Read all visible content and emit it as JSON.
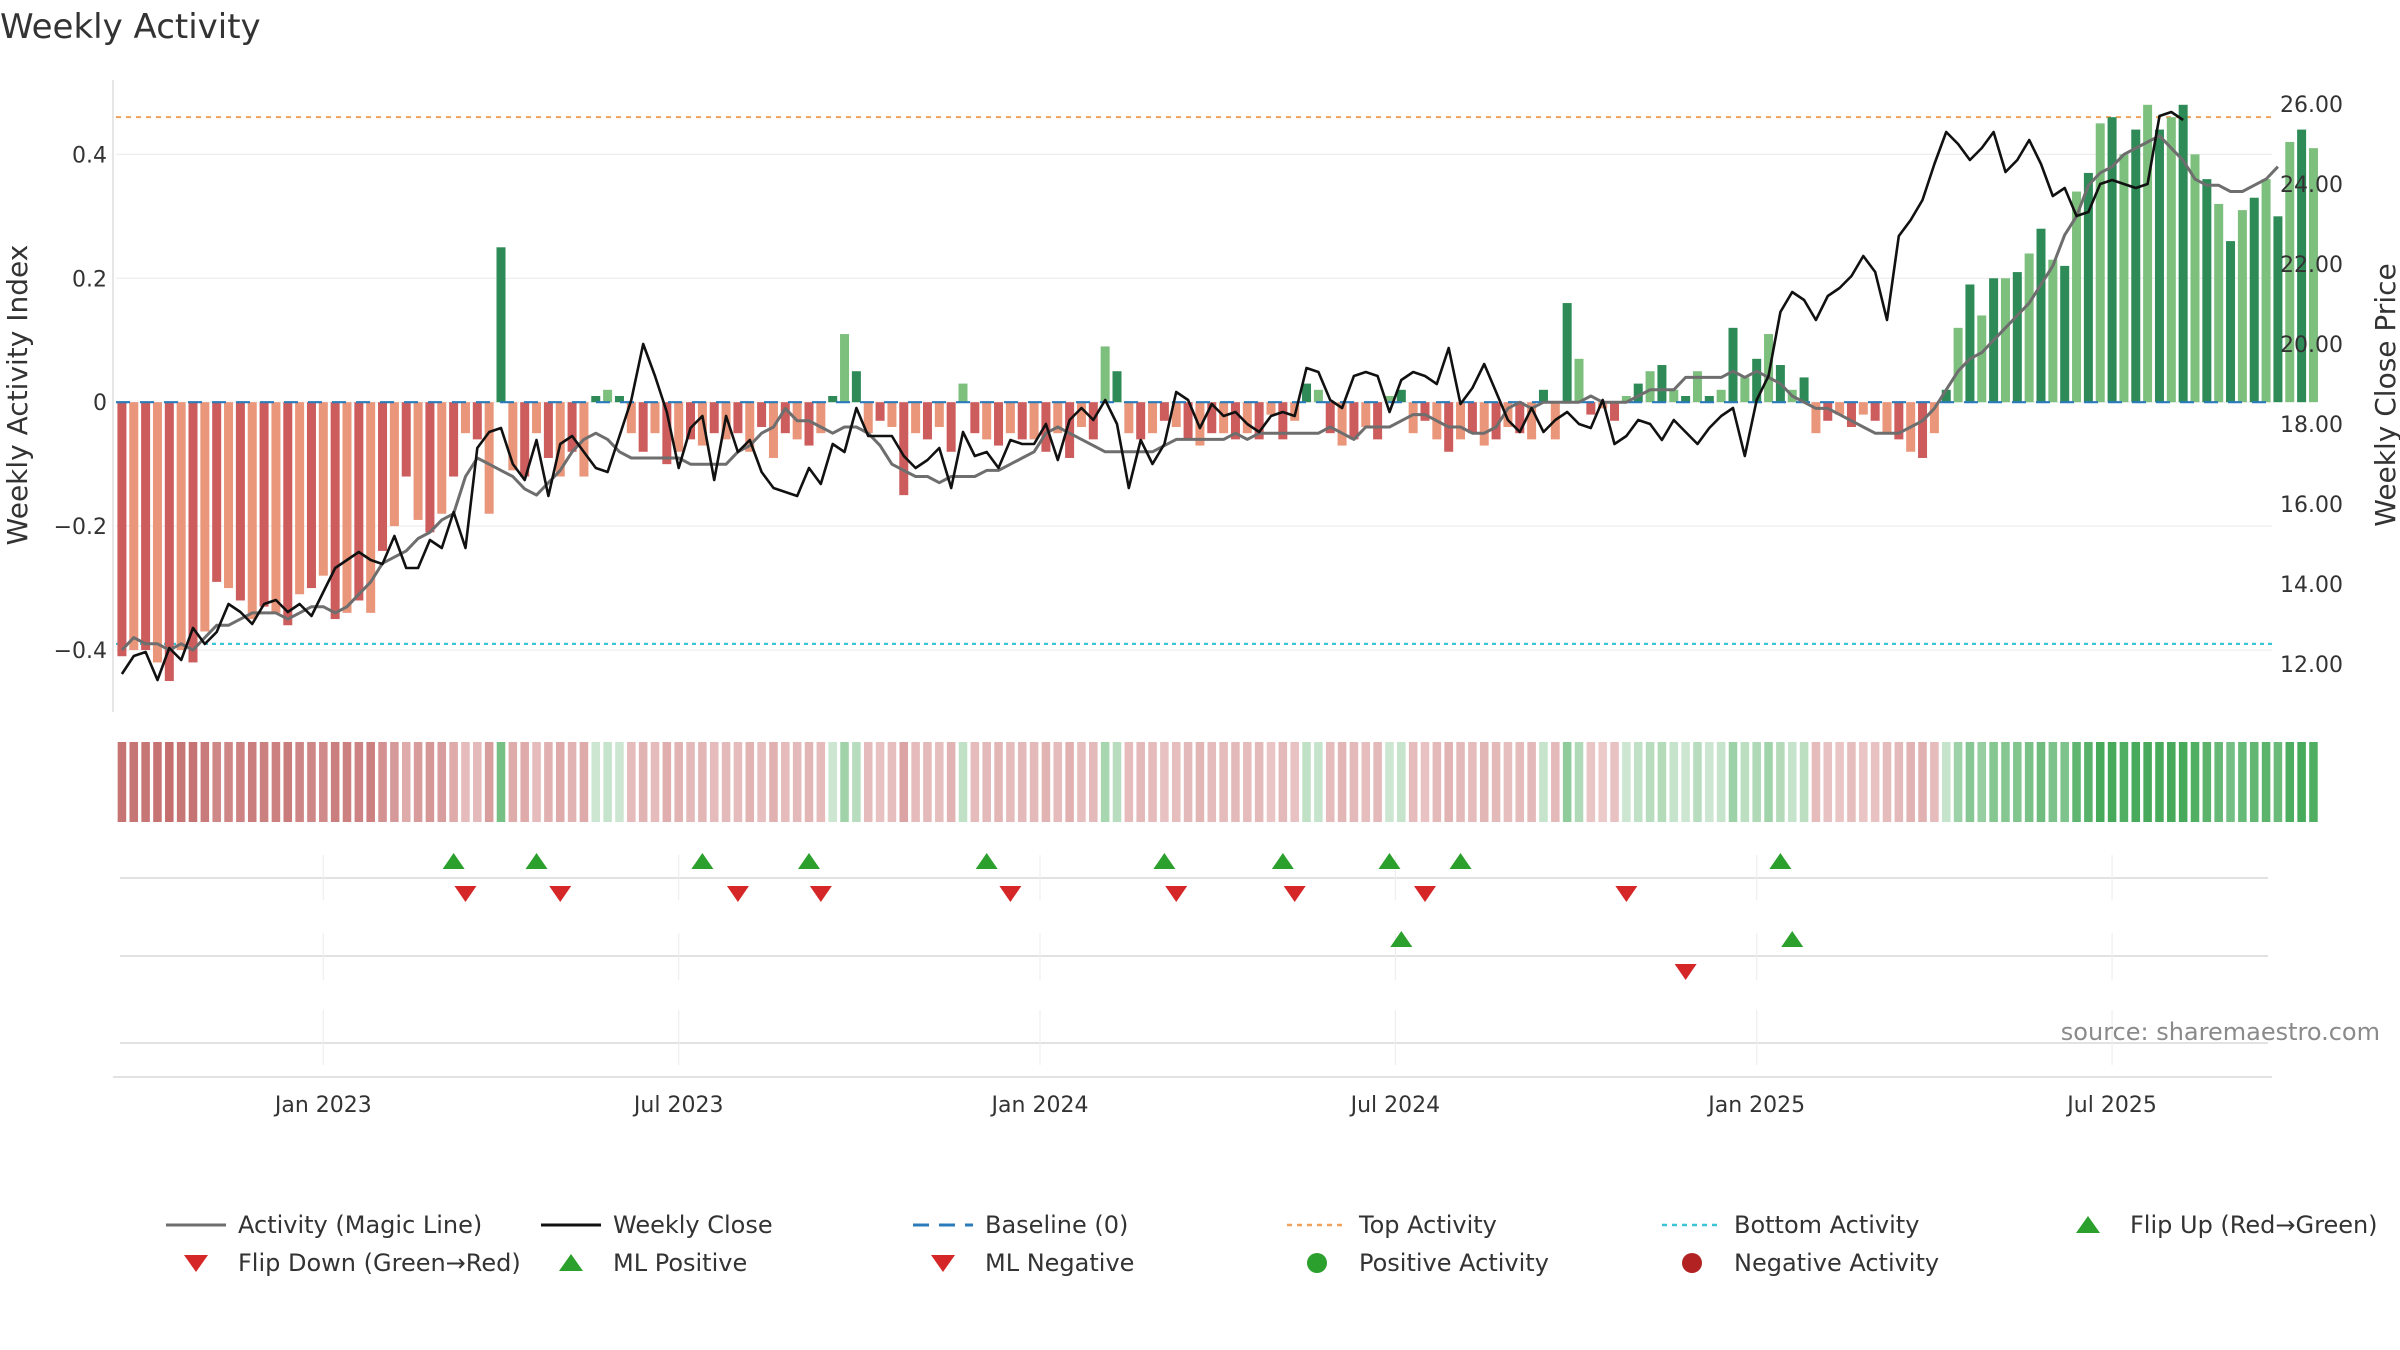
{
  "title": "Weekly Activity",
  "source": "source: sharemaestro.com",
  "colors": {
    "magic_line": "#6e6e6e",
    "close_line": "#111111",
    "baseline": "#2b7bba",
    "top_line": "#f0a15a",
    "bottom_line": "#3bc3d6",
    "flip_up": "#2ca02c",
    "flip_down": "#d62728",
    "pos_dark": "#2e8b57",
    "pos_light": "#7dbf7d",
    "neg_dark": "#cd5c5c",
    "neg_light": "#e9967a"
  },
  "legend": [
    {
      "label": "Activity (Magic Line)",
      "kind": "line-solid",
      "color": "#6e6e6e"
    },
    {
      "label": "Weekly Close",
      "kind": "line-solid",
      "color": "#111111"
    },
    {
      "label": "Baseline (0)",
      "kind": "line-dash",
      "color": "#2b7bba"
    },
    {
      "label": "Top Activity",
      "kind": "line-dot",
      "color": "#f0a15a"
    },
    {
      "label": "Bottom Activity",
      "kind": "line-dot",
      "color": "#3bc3d6"
    },
    {
      "label": "Flip Up (Red→Green)",
      "kind": "tri-up",
      "color": "#2ca02c"
    },
    {
      "label": "Flip Down (Green→Red)",
      "kind": "tri-down",
      "color": "#d62728"
    },
    {
      "label": "ML Positive",
      "kind": "tri-up",
      "color": "#2ca02c"
    },
    {
      "label": "ML Negative",
      "kind": "tri-down",
      "color": "#d62728"
    },
    {
      "label": "Positive Activity",
      "kind": "dot",
      "color": "#2ca02c"
    },
    {
      "label": "Negative Activity",
      "kind": "dot",
      "color": "#b22222"
    }
  ],
  "chart_data": {
    "type": "bar",
    "title": "Weekly Activity",
    "ylabel_left": "Weekly Activity Index",
    "ylabel_right": "Weekly Close Price",
    "left_ylim": [
      -0.5,
      0.52
    ],
    "right_ylim": [
      10.8,
      26.6
    ],
    "left_ticks": [
      {
        "v": 0.4,
        "label": "0.4"
      },
      {
        "v": 0.2,
        "label": "0.2"
      },
      {
        "v": 0,
        "label": "0"
      },
      {
        "v": -0.2,
        "label": "−0.2"
      },
      {
        "v": -0.4,
        "label": "−0.4"
      }
    ],
    "right_ticks": [
      {
        "v": 26,
        "label": "26.00"
      },
      {
        "v": 24,
        "label": "24.00"
      },
      {
        "v": 22,
        "label": "22.00"
      },
      {
        "v": 20,
        "label": "20.00"
      },
      {
        "v": 18,
        "label": "18.00"
      },
      {
        "v": 16,
        "label": "16.00"
      },
      {
        "v": 14,
        "label": "14.00"
      },
      {
        "v": 12,
        "label": "12.00"
      }
    ],
    "x_ticks": [
      {
        "week": 17,
        "label": "Jan 2023"
      },
      {
        "week": 47,
        "label": "Jul 2023"
      },
      {
        "week": 77.5,
        "label": "Jan 2024"
      },
      {
        "week": 107.5,
        "label": "Jul 2024"
      },
      {
        "week": 138,
        "label": "Jan 2025"
      },
      {
        "week": 168,
        "label": "Jul 2025"
      }
    ],
    "top_activity": 0.46,
    "bottom_activity": -0.39,
    "baseline": 0,
    "weeks": 182,
    "activity": [
      -0.41,
      -0.4,
      -0.4,
      -0.42,
      -0.45,
      -0.4,
      -0.42,
      -0.37,
      -0.29,
      -0.3,
      -0.32,
      -0.35,
      -0.33,
      -0.34,
      -0.36,
      -0.31,
      -0.3,
      -0.28,
      -0.35,
      -0.34,
      -0.32,
      -0.34,
      -0.24,
      -0.2,
      -0.12,
      -0.19,
      -0.21,
      -0.18,
      -0.12,
      -0.05,
      -0.06,
      -0.18,
      0.25,
      -0.11,
      -0.12,
      -0.05,
      -0.09,
      -0.12,
      -0.08,
      -0.12,
      0.01,
      0.02,
      0.01,
      -0.05,
      -0.08,
      -0.05,
      -0.1,
      -0.08,
      -0.06,
      -0.07,
      -0.05,
      -0.06,
      -0.05,
      -0.08,
      -0.04,
      -0.09,
      -0.05,
      -0.06,
      -0.07,
      -0.05,
      0.01,
      0.11,
      0.05,
      -0.05,
      -0.03,
      -0.04,
      -0.15,
      -0.05,
      -0.06,
      -0.04,
      -0.08,
      0.03,
      -0.05,
      -0.06,
      -0.07,
      -0.05,
      -0.06,
      -0.06,
      -0.08,
      -0.05,
      -0.09,
      -0.04,
      -0.06,
      0.09,
      0.05,
      -0.05,
      -0.06,
      -0.05,
      -0.03,
      -0.04,
      -0.06,
      -0.07,
      -0.05,
      -0.05,
      -0.06,
      -0.05,
      -0.06,
      -0.02,
      -0.06,
      -0.03,
      0.03,
      0.02,
      -0.05,
      -0.07,
      -0.06,
      -0.04,
      -0.06,
      0.01,
      0.02,
      -0.05,
      -0.03,
      -0.06,
      -0.08,
      -0.06,
      -0.05,
      -0.07,
      -0.06,
      -0.04,
      -0.05,
      -0.06,
      0.02,
      -0.06,
      0.16,
      0.07,
      -0.02,
      -0.01,
      -0.03,
      0.01,
      0.03,
      0.05,
      0.06,
      0.02,
      0.01,
      0.05,
      0.01,
      0.02,
      0.12,
      0.04,
      0.07,
      0.11,
      0.06,
      0.02,
      0.04,
      -0.05,
      -0.03,
      -0.02,
      -0.04,
      -0.02,
      -0.03,
      -0.05,
      -0.06,
      -0.08,
      -0.09,
      -0.05,
      0.02,
      0.12,
      0.19,
      0.14,
      0.2,
      0.2,
      0.21,
      0.24,
      0.28,
      0.23,
      0.22,
      0.34,
      0.37,
      0.45,
      0.46,
      0.4,
      0.44,
      0.48,
      0.44,
      0.46,
      0.48,
      0.4,
      0.36,
      0.32,
      0.26,
      0.31,
      0.33,
      0.36,
      0.3,
      0.42,
      0.44,
      0.41
    ],
    "magic_line": [
      -0.4,
      -0.38,
      -0.39,
      -0.39,
      -0.4,
      -0.39,
      -0.4,
      -0.38,
      -0.36,
      -0.36,
      -0.35,
      -0.34,
      -0.34,
      -0.34,
      -0.35,
      -0.34,
      -0.33,
      -0.33,
      -0.34,
      -0.33,
      -0.31,
      -0.29,
      -0.26,
      -0.25,
      -0.24,
      -0.22,
      -0.21,
      -0.19,
      -0.18,
      -0.12,
      -0.09,
      -0.1,
      -0.11,
      -0.12,
      -0.14,
      -0.15,
      -0.13,
      -0.11,
      -0.08,
      -0.06,
      -0.05,
      -0.06,
      -0.08,
      -0.09,
      -0.09,
      -0.09,
      -0.09,
      -0.09,
      -0.1,
      -0.1,
      -0.1,
      -0.1,
      -0.08,
      -0.07,
      -0.05,
      -0.04,
      -0.01,
      -0.03,
      -0.03,
      -0.04,
      -0.05,
      -0.04,
      -0.04,
      -0.05,
      -0.07,
      -0.1,
      -0.11,
      -0.12,
      -0.12,
      -0.13,
      -0.12,
      -0.12,
      -0.12,
      -0.11,
      -0.11,
      -0.1,
      -0.09,
      -0.08,
      -0.05,
      -0.04,
      -0.05,
      -0.06,
      -0.07,
      -0.08,
      -0.08,
      -0.08,
      -0.08,
      -0.08,
      -0.07,
      -0.06,
      -0.06,
      -0.06,
      -0.06,
      -0.06,
      -0.05,
      -0.06,
      -0.05,
      -0.05,
      -0.05,
      -0.05,
      -0.05,
      -0.05,
      -0.04,
      -0.05,
      -0.06,
      -0.04,
      -0.04,
      -0.04,
      -0.03,
      -0.02,
      -0.02,
      -0.03,
      -0.04,
      -0.04,
      -0.05,
      -0.05,
      -0.04,
      -0.01,
      0.0,
      -0.01,
      0.0,
      0.0,
      0.0,
      0.0,
      0.01,
      0.0,
      0.0,
      0.0,
      0.01,
      0.02,
      0.02,
      0.02,
      0.04,
      0.04,
      0.04,
      0.04,
      0.05,
      0.04,
      0.05,
      0.04,
      0.03,
      0.01,
      0.0,
      -0.01,
      -0.01,
      -0.02,
      -0.03,
      -0.04,
      -0.05,
      -0.05,
      -0.05,
      -0.04,
      -0.03,
      -0.01,
      0.02,
      0.05,
      0.07,
      0.08,
      0.1,
      0.12,
      0.14,
      0.16,
      0.19,
      0.22,
      0.27,
      0.3,
      0.35,
      0.37,
      0.38,
      0.4,
      0.41,
      0.42,
      0.43,
      0.41,
      0.39,
      0.36,
      0.35,
      0.35,
      0.34,
      0.34,
      0.35,
      0.36,
      0.38
    ],
    "weekly_close": [
      11.75,
      12.2,
      12.3,
      11.6,
      12.4,
      12.1,
      12.9,
      12.5,
      12.8,
      13.5,
      13.3,
      13.0,
      13.5,
      13.6,
      13.3,
      13.5,
      13.2,
      13.8,
      14.4,
      14.6,
      14.8,
      14.6,
      14.5,
      15.2,
      14.4,
      14.4,
      15.1,
      14.9,
      15.8,
      14.9,
      17.4,
      17.8,
      17.9,
      17.0,
      16.6,
      17.6,
      16.2,
      17.5,
      17.7,
      17.3,
      16.9,
      16.8,
      17.7,
      18.6,
      20.0,
      19.2,
      18.3,
      16.9,
      17.9,
      18.2,
      16.6,
      18.2,
      17.3,
      17.6,
      16.8,
      16.4,
      16.3,
      16.2,
      16.9,
      16.5,
      17.5,
      17.3,
      18.4,
      17.7,
      17.7,
      17.7,
      17.2,
      16.9,
      17.1,
      17.4,
      16.4,
      17.8,
      17.2,
      17.3,
      16.9,
      17.6,
      17.5,
      17.5,
      18.0,
      17.1,
      18.1,
      18.4,
      18.1,
      18.6,
      18.0,
      16.4,
      17.6,
      17.0,
      17.5,
      18.8,
      18.6,
      17.9,
      18.5,
      18.2,
      18.3,
      18.0,
      17.8,
      18.2,
      18.3,
      18.2,
      19.4,
      19.3,
      18.6,
      18.4,
      19.2,
      19.3,
      19.2,
      18.3,
      19.1,
      19.3,
      19.2,
      19.0,
      19.9,
      18.5,
      18.9,
      19.5,
      18.8,
      18.1,
      17.8,
      18.4,
      17.8,
      18.1,
      18.3,
      18.0,
      17.9,
      18.6,
      17.5,
      17.7,
      18.1,
      18.0,
      17.6,
      18.1,
      17.8,
      17.5,
      17.9,
      18.2,
      18.4,
      17.2,
      18.6,
      19.2,
      20.8,
      21.3,
      21.1,
      20.6,
      21.2,
      21.4,
      21.7,
      22.2,
      21.8,
      20.6,
      22.7,
      23.1,
      23.6,
      24.5,
      25.3,
      25.0,
      24.6,
      24.9,
      25.3,
      24.3,
      24.6,
      25.1,
      24.5,
      23.7,
      23.9,
      23.2,
      23.3,
      24.0,
      24.1,
      24.0,
      23.9,
      24.0,
      25.7,
      25.8,
      25.6
    ],
    "flip_up_weeks": [
      28,
      35,
      49,
      58,
      73,
      88,
      98,
      107,
      113,
      140
    ],
    "flip_down_weeks": [
      29,
      37,
      52,
      59,
      75,
      89,
      99,
      110,
      127
    ],
    "ml_positive_weeks": [
      108,
      141
    ],
    "ml_negative_weeks": [
      132
    ]
  }
}
